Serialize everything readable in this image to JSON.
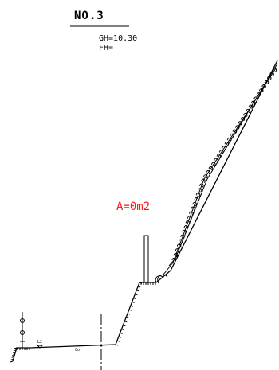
{
  "section": {
    "number": "NO.3",
    "gh": "GH=10.30",
    "fh": "FH=",
    "area": "A=0m2"
  },
  "markers": {
    "road_left": "L2",
    "road_center": "Co"
  },
  "colors": {
    "line": "#000000",
    "area_text": "#ff1a1a"
  }
}
